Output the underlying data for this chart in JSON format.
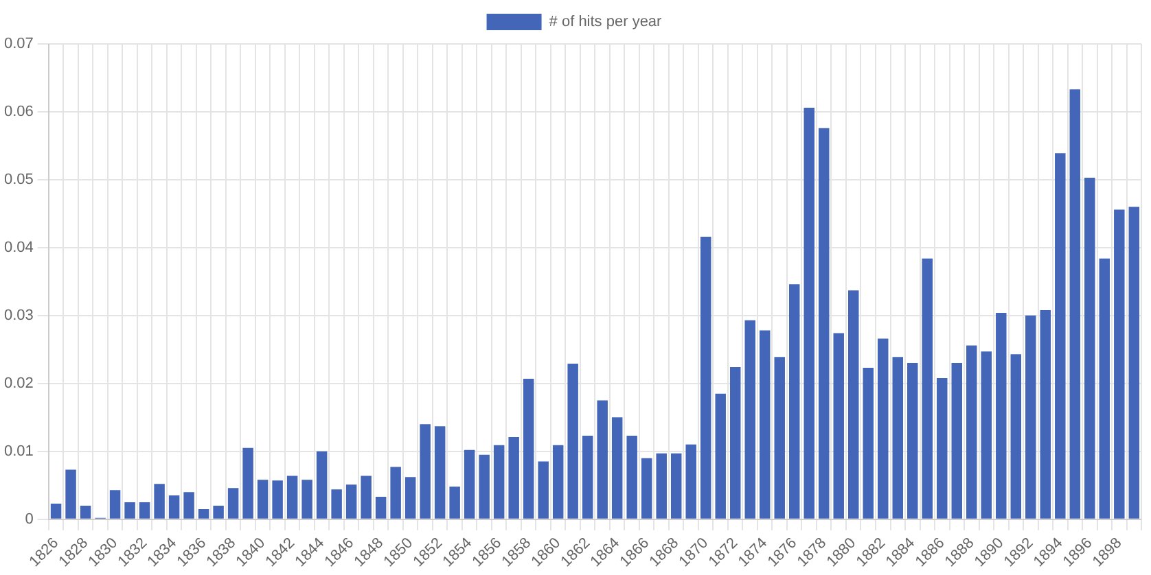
{
  "chart_data": {
    "type": "bar",
    "categories": [
      "1826",
      null,
      "1828",
      null,
      "1830",
      null,
      "1832",
      null,
      "1834",
      null,
      "1836",
      null,
      "1838",
      null,
      "1840",
      null,
      "1842",
      null,
      "1844",
      null,
      "1846",
      null,
      "1848",
      null,
      "1850",
      null,
      "1852",
      null,
      "1854",
      null,
      "1856",
      null,
      "1858",
      null,
      "1860",
      null,
      "1862",
      null,
      "1864",
      null,
      "1866",
      null,
      "1868",
      null,
      "1870",
      null,
      "1872",
      null,
      "1874",
      null,
      "1876",
      null,
      "1878",
      null,
      "1880",
      null,
      "1882",
      null,
      "1884",
      null,
      "1886",
      null,
      "1888",
      null,
      "1890",
      null,
      "1892",
      null,
      "1894",
      null,
      "1896",
      null,
      "1898",
      null
    ],
    "series": [
      {
        "name": "# of hits per year",
        "color": "#4466b8",
        "values": [
          0.0023,
          0.0073,
          0.002,
          0.0002,
          0.0043,
          0.0025,
          0.0025,
          0.0052,
          0.0035,
          0.004,
          0.0015,
          0.002,
          0.0046,
          0.0105,
          0.0058,
          0.0057,
          0.0064,
          0.0058,
          0.01,
          0.0044,
          0.0051,
          0.0064,
          0.0033,
          0.0077,
          0.0062,
          0.014,
          0.0137,
          0.0048,
          0.0102,
          0.0095,
          0.0109,
          0.0121,
          0.0207,
          0.0085,
          0.0109,
          0.0229,
          0.0123,
          0.0175,
          0.015,
          0.0123,
          0.009,
          0.0097,
          0.0097,
          0.011,
          0.0416,
          0.0185,
          0.0224,
          0.0293,
          0.0278,
          0.0239,
          0.0346,
          0.0606,
          0.0576,
          0.0274,
          0.0337,
          0.0223,
          0.0266,
          0.0239,
          0.023,
          0.0384,
          0.0208,
          0.023,
          0.0256,
          0.0247,
          0.0304,
          0.0243,
          0.03,
          0.0308,
          0.0539,
          0.0633,
          0.0503,
          0.0384,
          0.0456,
          0.046
        ]
      }
    ],
    "ylim": [
      0,
      0.07
    ],
    "yticks": [
      0,
      0.01,
      0.02,
      0.03,
      0.04,
      0.05,
      0.06,
      0.07
    ],
    "grid": true,
    "legend": "top"
  }
}
